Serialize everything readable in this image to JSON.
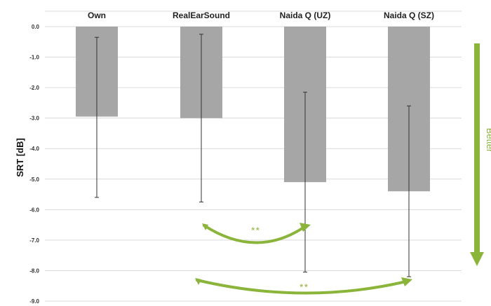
{
  "chart_data": {
    "type": "bar",
    "ylabel": "SRT [dB]",
    "categories": [
      "Own",
      "RealEarSound",
      "Naida Q (UZ)",
      "Naida Q (SZ)"
    ],
    "values": [
      -2.95,
      -3.0,
      -5.1,
      -5.4
    ],
    "error_bars": [
      {
        "low": -5.6,
        "high": -0.35
      },
      {
        "low": -5.75,
        "high": -0.25
      },
      {
        "low": -8.05,
        "high": -2.15
      },
      {
        "low": -8.2,
        "high": -2.6
      }
    ],
    "ylim": [
      -9.0,
      0.0
    ],
    "yticks": [
      "0.0",
      "-1.0",
      "-2.0",
      "-3.0",
      "-4.0",
      "-5.0",
      "-6.0",
      "-7.0",
      "-8.0",
      "-9.0"
    ],
    "grid": true,
    "colors": {
      "bar": "#a6a6a6",
      "grid": "#d9d9d9",
      "annotation": "#8ab43a"
    },
    "annotations": [
      {
        "text": "**",
        "from": "RealEarSound",
        "to": "Naida Q (UZ)"
      },
      {
        "text": "**",
        "from": "RealEarSound",
        "to": "Naida Q (SZ)"
      }
    ],
    "side_arrow_label": "Better"
  }
}
